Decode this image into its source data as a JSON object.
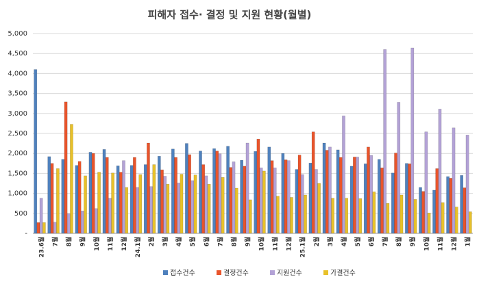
{
  "chart_data": {
    "type": "bar",
    "title": "피해자 접수· 결정 및 지원 현황(월별)",
    "categories": [
      "23.6월",
      "7월",
      "8월",
      "9월",
      "10월",
      "11월",
      "12월",
      "24.1월",
      "2월",
      "3월",
      "4월",
      "5월",
      "6월",
      "7월",
      "8월",
      "9월",
      "10월",
      "11월",
      "12월",
      "25.1월",
      "2월",
      "3월",
      "4월",
      "5월",
      "6월",
      "7월",
      "8월",
      "9월",
      "10월",
      "11월",
      "12월",
      "1월"
    ],
    "series": [
      {
        "name": "접수건수",
        "color": "#4f81bd",
        "values": [
          4100,
          1920,
          1850,
          1700,
          2030,
          2100,
          1690,
          1700,
          1720,
          1930,
          2110,
          2250,
          2060,
          2120,
          2180,
          1830,
          2050,
          2160,
          2000,
          1600,
          1760,
          2260,
          2090,
          1680,
          1740,
          1850,
          1510,
          1750,
          1150,
          1080,
          1420,
          1450
        ]
      },
      {
        "name": "결정건수",
        "color": "#e9542b",
        "values": [
          270,
          1750,
          3290,
          1800,
          2000,
          1900,
          1530,
          1900,
          2260,
          1590,
          1900,
          1970,
          1720,
          2060,
          1650,
          1680,
          2360,
          1820,
          1840,
          1960,
          2540,
          2080,
          1900,
          1910,
          2160,
          1640,
          2010,
          1740,
          1050,
          1620,
          1380,
          1140
        ]
      },
      {
        "name": "지원건수",
        "color": "#b3a2d6",
        "values": [
          880,
          280,
          490,
          560,
          620,
          880,
          1820,
          1150,
          1170,
          1430,
          1260,
          1320,
          1440,
          1990,
          1790,
          2260,
          1640,
          1640,
          1820,
          1470,
          1600,
          2160,
          2940,
          1910,
          1950,
          4600,
          3280,
          4640,
          2540,
          3110,
          2640,
          2460
        ]
      },
      {
        "name": "가결건수",
        "color": "#e8c12a",
        "values": [
          270,
          1620,
          2730,
          1440,
          1530,
          1510,
          1150,
          1470,
          1720,
          1230,
          1480,
          1460,
          1230,
          1400,
          1130,
          840,
          1560,
          930,
          900,
          960,
          1250,
          880,
          880,
          870,
          1040,
          750,
          960,
          850,
          510,
          770,
          660,
          540
        ]
      }
    ],
    "ylim": [
      0,
      5000
    ],
    "yticks": [
      {
        "value": 0,
        "label": "-"
      },
      500,
      {
        "value": 1000,
        "label": "1,000"
      },
      {
        "value": 1500,
        "label": "1,500"
      },
      {
        "value": 2000,
        "label": "2,000"
      },
      {
        "value": 2500,
        "label": "2,500"
      },
      {
        "value": 3000,
        "label": "3,000"
      },
      {
        "value": 3500,
        "label": "3,500"
      },
      {
        "value": 4000,
        "label": "4,000"
      },
      {
        "value": 4500,
        "label": "4,500"
      },
      {
        "value": 5000,
        "label": "5,000"
      }
    ],
    "grid": true
  }
}
